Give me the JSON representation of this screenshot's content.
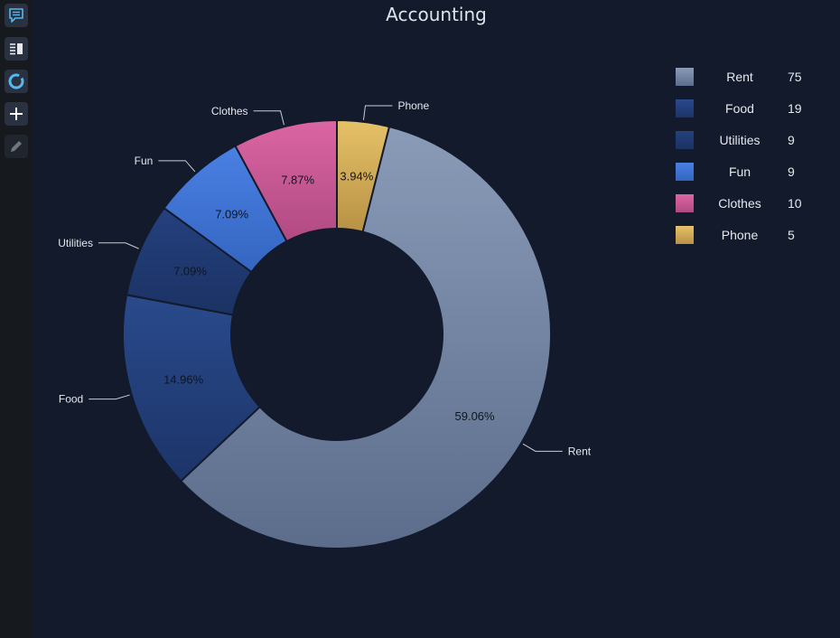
{
  "toolbar": {
    "items": [
      {
        "icon": "comment-icon"
      },
      {
        "icon": "panel-list-icon"
      },
      {
        "icon": "donut-chart-icon"
      },
      {
        "icon": "plus-icon"
      },
      {
        "icon": "pencil-icon"
      }
    ]
  },
  "chart_data": {
    "type": "pie",
    "variant": "donut",
    "title": "Accounting",
    "categories": [
      "Rent",
      "Food",
      "Utilities",
      "Fun",
      "Clothes",
      "Phone"
    ],
    "values": [
      75,
      19,
      9,
      9,
      10,
      5
    ],
    "percent_labels": [
      "59.06%",
      "14.96%",
      "7.09%",
      "7.09%",
      "7.87%",
      "3.94%"
    ],
    "drawing_order": [
      "Phone",
      "Rent",
      "Food",
      "Utilities",
      "Fun",
      "Clothes"
    ],
    "colors": {
      "Rent": [
        "#8a9bb8",
        "#5c6d8c"
      ],
      "Food": [
        "#2a4a8c",
        "#1c3468"
      ],
      "Utilities": [
        "#24407e",
        "#1b3263"
      ],
      "Fun": [
        "#4a80e4",
        "#3465c0"
      ],
      "Clothes": [
        "#dc65a4",
        "#b04a82"
      ],
      "Phone": [
        "#e6c168",
        "#b89245"
      ]
    },
    "legend": {
      "placement": "top-right",
      "entries": [
        {
          "label": "Rent",
          "value": "75"
        },
        {
          "label": "Food",
          "value": "19"
        },
        {
          "label": "Utilities",
          "value": "9"
        },
        {
          "label": "Fun",
          "value": "9"
        },
        {
          "label": "Clothes",
          "value": "10"
        },
        {
          "label": "Phone",
          "value": "5"
        }
      ]
    }
  }
}
